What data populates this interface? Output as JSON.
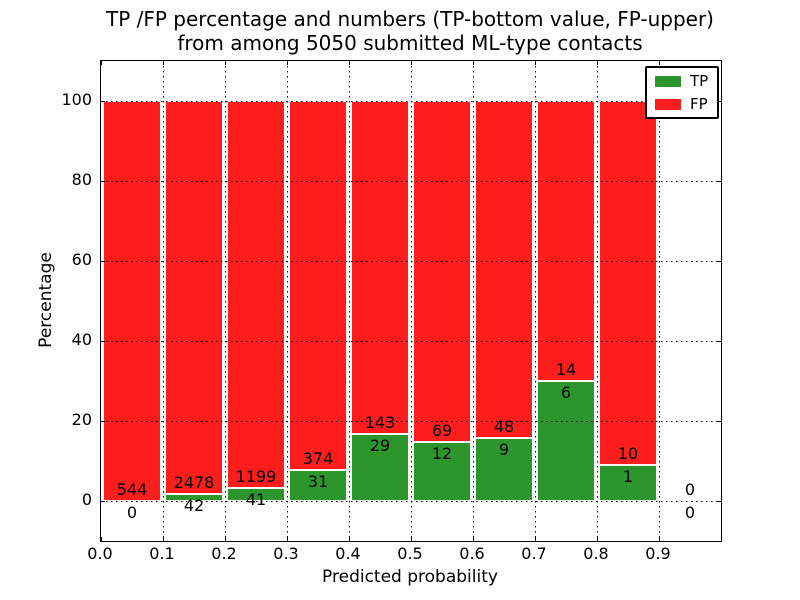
{
  "title": {
    "line1": "TP /FP percentage and numbers (TP-bottom value, FP-upper)",
    "line2": "from among 5050 submitted ML-type contacts"
  },
  "axes": {
    "xlabel": "Predicted probability",
    "ylabel": "Percentage"
  },
  "legend": {
    "items": [
      {
        "label": "TP",
        "color": "#2c962c"
      },
      {
        "label": "FP",
        "color": "#fc1d1d"
      }
    ]
  },
  "chart_data": {
    "type": "bar",
    "stacked": true,
    "title": "TP /FP percentage and numbers (TP-bottom value, FP-upper) from among 5050 submitted ML-type contacts",
    "xlabel": "Predicted probability",
    "ylabel": "Percentage",
    "total_contacts": 5050,
    "xlim": [
      0.0,
      1.0
    ],
    "ylim": [
      -10,
      110
    ],
    "grid": true,
    "legend_position": "upper right",
    "x_tick_values": [
      0.0,
      0.1,
      0.2,
      0.3,
      0.4,
      0.5,
      0.6,
      0.7,
      0.8,
      0.9
    ],
    "x_tick_labels": [
      "0.0",
      "0.1",
      "0.2",
      "0.3",
      "0.4",
      "0.5",
      "0.6",
      "0.7",
      "0.8",
      "0.9"
    ],
    "y_tick_values": [
      0,
      20,
      40,
      60,
      80,
      100
    ],
    "y_tick_labels": [
      "0",
      "20",
      "40",
      "60",
      "80",
      "100"
    ],
    "series": [
      {
        "name": "TP",
        "color": "#2c962c"
      },
      {
        "name": "FP",
        "color": "#fc1d1d"
      }
    ],
    "bar_edge_color": "#ffffff",
    "bins": [
      {
        "x0": 0.0,
        "x1": 0.1,
        "tp": 0,
        "fp": 544,
        "tp_pct": 0.0,
        "fp_pct": 100.0
      },
      {
        "x0": 0.1,
        "x1": 0.2,
        "tp": 42,
        "fp": 2478,
        "tp_pct": 1.67,
        "fp_pct": 98.33
      },
      {
        "x0": 0.2,
        "x1": 0.3,
        "tp": 41,
        "fp": 1199,
        "tp_pct": 3.31,
        "fp_pct": 96.69
      },
      {
        "x0": 0.3,
        "x1": 0.4,
        "tp": 31,
        "fp": 374,
        "tp_pct": 7.65,
        "fp_pct": 92.35
      },
      {
        "x0": 0.4,
        "x1": 0.5,
        "tp": 29,
        "fp": 143,
        "tp_pct": 16.86,
        "fp_pct": 83.14
      },
      {
        "x0": 0.5,
        "x1": 0.6,
        "tp": 12,
        "fp": 69,
        "tp_pct": 14.81,
        "fp_pct": 85.19
      },
      {
        "x0": 0.6,
        "x1": 0.7,
        "tp": 9,
        "fp": 48,
        "tp_pct": 15.79,
        "fp_pct": 84.21
      },
      {
        "x0": 0.7,
        "x1": 0.8,
        "tp": 6,
        "fp": 14,
        "tp_pct": 30.0,
        "fp_pct": 70.0
      },
      {
        "x0": 0.8,
        "x1": 0.9,
        "tp": 1,
        "fp": 10,
        "tp_pct": 9.09,
        "fp_pct": 90.91
      },
      {
        "x0": 0.9,
        "x1": 1.0,
        "tp": 0,
        "fp": 0,
        "tp_pct": null,
        "fp_pct": null
      }
    ]
  }
}
